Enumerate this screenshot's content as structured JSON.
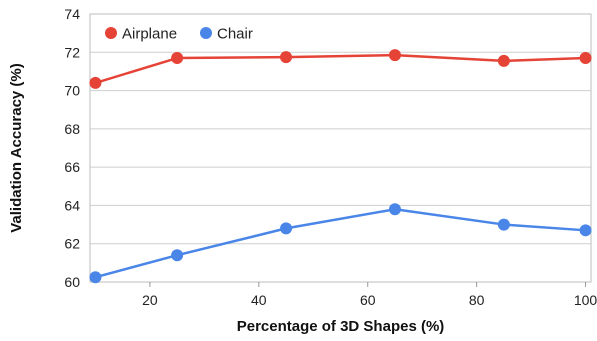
{
  "chart_data": {
    "type": "line",
    "title": "",
    "xlabel": "Percentage of 3D Shapes (%)",
    "ylabel": "Validation Accuracy (%)",
    "xlim": [
      9,
      101
    ],
    "ylim": [
      60,
      74
    ],
    "xticks": [
      20,
      40,
      60,
      80,
      100
    ],
    "yticks": [
      60,
      62,
      64,
      66,
      68,
      70,
      72,
      74
    ],
    "grid": "horizontal",
    "legend_position": "top-left",
    "series": [
      {
        "name": "Airplane",
        "color": "#e64337",
        "x": [
          10,
          25,
          45,
          65,
          85,
          100
        ],
        "y": [
          70.4,
          71.7,
          71.75,
          71.85,
          71.55,
          71.7
        ]
      },
      {
        "name": "Chair",
        "color": "#4a86e8",
        "x": [
          10,
          25,
          45,
          65,
          85,
          100
        ],
        "y": [
          60.25,
          61.4,
          62.8,
          63.8,
          63.0,
          62.7
        ]
      }
    ]
  }
}
